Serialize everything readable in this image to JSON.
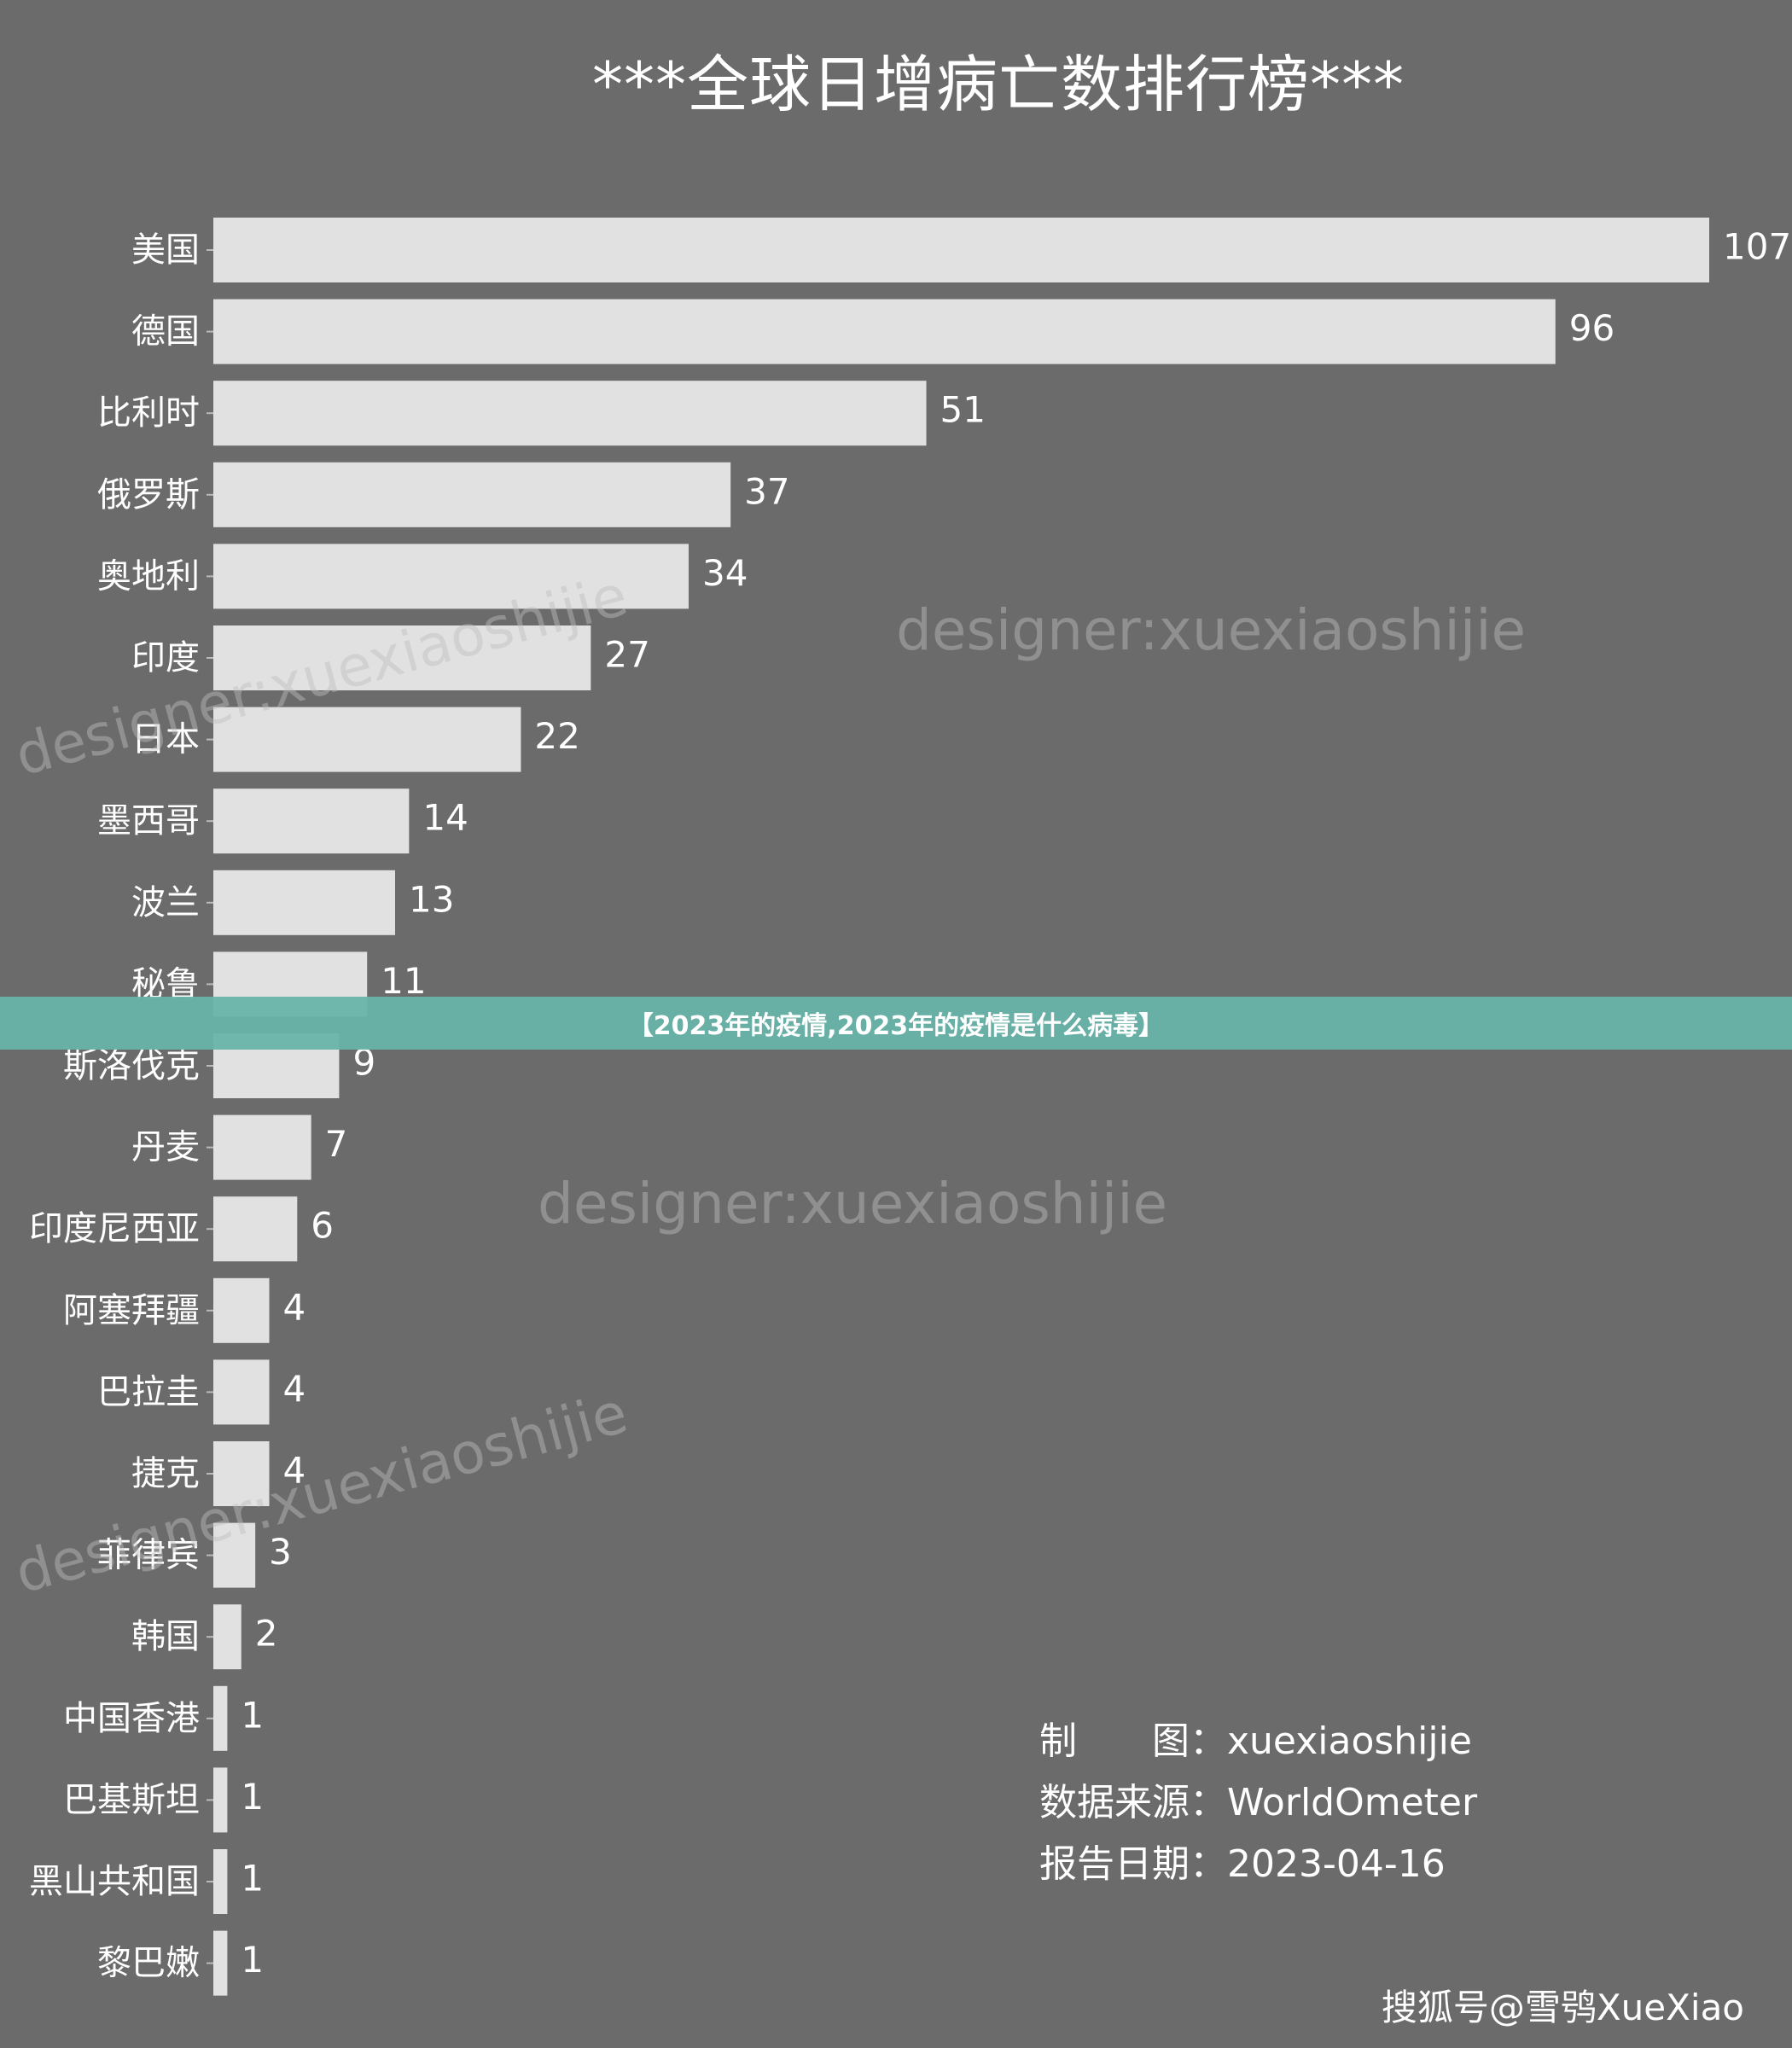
{
  "overlay": {
    "banner_text": "【2023年的疫情,2023年的疫情是什么病毒】"
  },
  "watermarks": [
    "designer:xuexiaoshijie",
    "designer:xuexiaoshijie",
    "designer:xuexiaoshijie",
    "designer:xuexiaoshijie"
  ],
  "info": {
    "maker_key": "制　　图：",
    "maker_val": "xuexiaoshijie",
    "source_key": "数据来源：",
    "source_val": "WorldOmeter",
    "date_key": "报告日期：",
    "date_val": "2023-04-16"
  },
  "credit": "搜狐号@雪鸮XueXiao",
  "colors": {
    "background": "#6b6b6b",
    "bar": "#e1e1e1",
    "banner": "#68b4aa"
  },
  "chart_data": {
    "type": "bar",
    "orientation": "horizontal",
    "title": "***全球日增病亡数排行榜***",
    "xlabel": "",
    "ylabel": "",
    "grid": false,
    "xlim": [
      0,
      107
    ],
    "categories": [
      "美国",
      "德国",
      "比利时",
      "俄罗斯",
      "奥地利",
      "印度",
      "日本",
      "墨西哥",
      "波兰",
      "秘鲁",
      "斯洛伐克",
      "丹麦",
      "印度尼西亚",
      "阿塞拜疆",
      "巴拉圭",
      "捷克",
      "菲律宾",
      "韩国",
      "中国香港",
      "巴基斯坦",
      "黑山共和国",
      "黎巴嫩"
    ],
    "values": [
      107,
      96,
      51,
      37,
      34,
      27,
      22,
      14,
      13,
      11,
      9,
      7,
      6,
      4,
      4,
      4,
      3,
      2,
      1,
      1,
      1,
      1
    ]
  }
}
